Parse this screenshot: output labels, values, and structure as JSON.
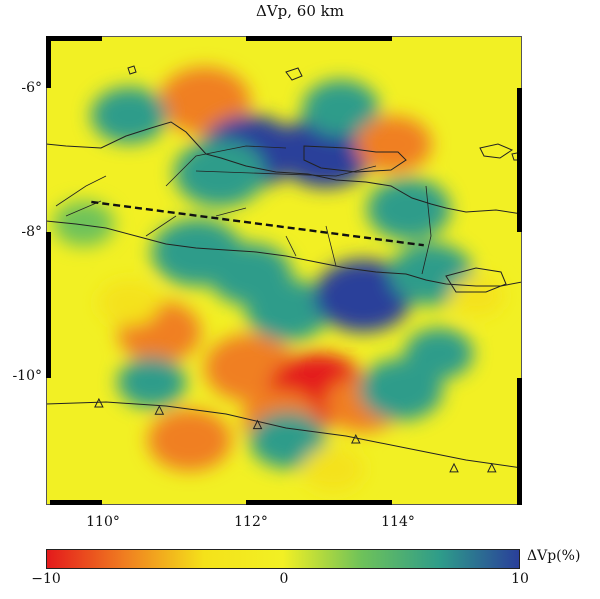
{
  "title": "ΔVp, 60 km",
  "map": {
    "lat_ticks": [
      "-6°",
      "-8°",
      "-10°"
    ],
    "lon_ticks": [
      "110°",
      "112°",
      "114°"
    ],
    "lon_range": [
      109.3,
      115.6
    ],
    "lat_range": [
      -11.7,
      -5.2
    ]
  },
  "colorbar": {
    "label": "ΔVp(%)",
    "min_label": "−10",
    "mid_label": "0",
    "max_label": "10",
    "range": [
      -10,
      10
    ],
    "colors": [
      "#e41a1c",
      "#f07f20",
      "#f4e21a",
      "#f2f024",
      "#6ec25a",
      "#2e9c8a",
      "#2a3f9a"
    ]
  },
  "anomalies": [
    {
      "lon": 111.4,
      "lat": -6.1,
      "value": -8
    },
    {
      "lon": 110.4,
      "lat": -6.3,
      "value": 6
    },
    {
      "lon": 112.0,
      "lat": -6.8,
      "value": 9
    },
    {
      "lon": 113.0,
      "lat": -6.8,
      "value": 9
    },
    {
      "lon": 111.6,
      "lat": -7.1,
      "value": 8
    },
    {
      "lon": 113.2,
      "lat": -6.2,
      "value": 6
    },
    {
      "lon": 113.9,
      "lat": -6.7,
      "value": -6
    },
    {
      "lon": 114.1,
      "lat": -7.6,
      "value": 7
    },
    {
      "lon": 111.3,
      "lat": -8.2,
      "value": 8
    },
    {
      "lon": 112.0,
      "lat": -8.5,
      "value": 7
    },
    {
      "lon": 112.5,
      "lat": -9.0,
      "value": 7
    },
    {
      "lon": 113.5,
      "lat": -8.8,
      "value": 9
    },
    {
      "lon": 114.4,
      "lat": -8.5,
      "value": 7
    },
    {
      "lon": 110.8,
      "lat": -9.3,
      "value": -7
    },
    {
      "lon": 110.4,
      "lat": -8.9,
      "value": -4
    },
    {
      "lon": 112.0,
      "lat": -9.8,
      "value": -8
    },
    {
      "lon": 112.9,
      "lat": -10.1,
      "value": -9
    },
    {
      "lon": 113.5,
      "lat": -10.3,
      "value": -6
    },
    {
      "lon": 111.2,
      "lat": -10.8,
      "value": -7
    },
    {
      "lon": 112.4,
      "lat": -10.5,
      "value": -6
    },
    {
      "lon": 110.7,
      "lat": -10.0,
      "value": 5
    },
    {
      "lon": 112.5,
      "lat": -10.8,
      "value": 6
    },
    {
      "lon": 113.1,
      "lat": -11.2,
      "value": -4
    },
    {
      "lon": 114.0,
      "lat": -10.1,
      "value": 7
    },
    {
      "lon": 114.5,
      "lat": -9.6,
      "value": 5
    },
    {
      "lon": 109.8,
      "lat": -7.8,
      "value": 4
    },
    {
      "lon": 115.0,
      "lat": -8.8,
      "value": -3
    }
  ],
  "dashed_line": [
    [
      109.9,
      -7.5
    ],
    [
      114.3,
      -8.1
    ]
  ],
  "trench_triangles": [
    [
      110.0,
      -10.3
    ],
    [
      110.8,
      -10.4
    ],
    [
      112.1,
      -10.6
    ],
    [
      113.4,
      -10.8
    ],
    [
      114.7,
      -11.2
    ],
    [
      115.2,
      -11.2
    ]
  ]
}
